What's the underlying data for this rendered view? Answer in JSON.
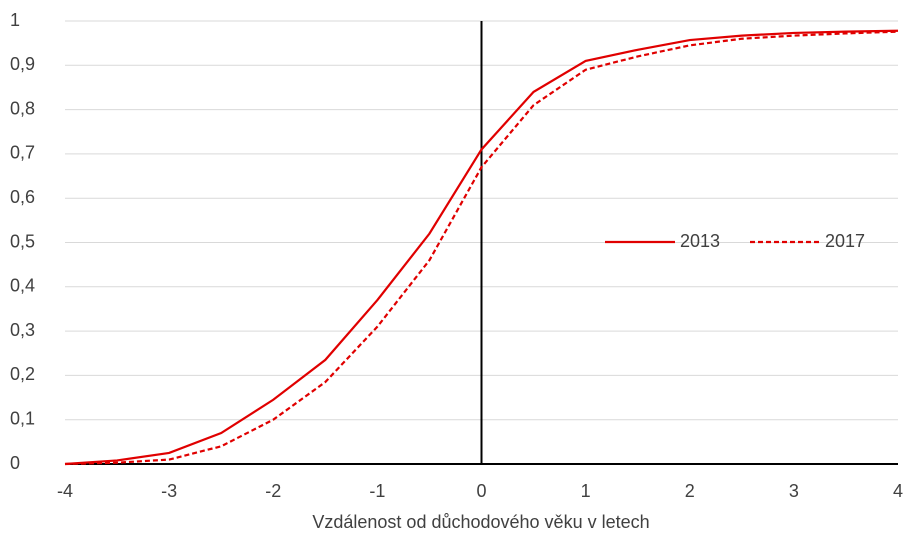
{
  "chart_data": {
    "type": "line",
    "x_label": "Vzdálenost od důchodového věku v letech",
    "x": [
      -4,
      -3.5,
      -3,
      -2.5,
      -2,
      -1.5,
      -1,
      -0.5,
      0,
      0.5,
      1,
      1.5,
      2,
      2.5,
      3,
      3.5,
      4
    ],
    "series": [
      {
        "name": "2013",
        "color": "#e00000",
        "line_style": "solid",
        "values": [
          0,
          0.008,
          0.025,
          0.07,
          0.145,
          0.235,
          0.37,
          0.52,
          0.71,
          0.84,
          0.91,
          0.935,
          0.957,
          0.967,
          0.973,
          0.976,
          0.978
        ]
      },
      {
        "name": "2017",
        "color": "#e00000",
        "line_style": "dashed",
        "values": [
          0,
          0.003,
          0.01,
          0.04,
          0.1,
          0.185,
          0.31,
          0.46,
          0.67,
          0.81,
          0.89,
          0.92,
          0.945,
          0.96,
          0.967,
          0.972,
          0.976
        ]
      }
    ],
    "xlim": [
      -4,
      4
    ],
    "xticks": [
      -4,
      -3,
      -2,
      -1,
      0,
      1,
      2,
      3,
      4
    ],
    "ylim": [
      0,
      1
    ],
    "yticks": [
      0,
      {
        "value": 0.1,
        "label": "0,1"
      },
      {
        "value": 0.2,
        "label": "0,2"
      },
      {
        "value": 0.3,
        "label": "0,3"
      },
      {
        "value": 0.4,
        "label": "0,4"
      },
      {
        "value": 0.5,
        "label": "0,5"
      },
      {
        "value": 0.6,
        "label": "0,6"
      },
      {
        "value": 0.7,
        "label": "0,7"
      },
      {
        "value": 0.8,
        "label": "0,8"
      },
      {
        "value": 0.9,
        "label": "0,9"
      },
      1
    ],
    "grid": true,
    "legend": "right"
  }
}
